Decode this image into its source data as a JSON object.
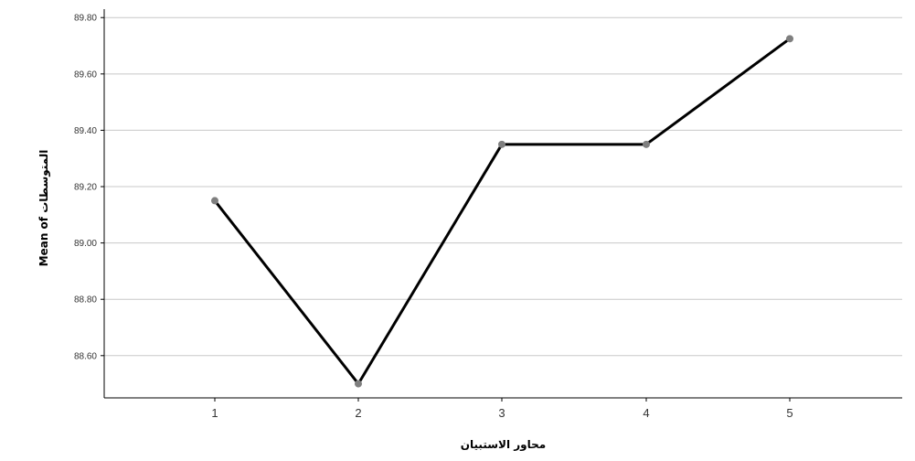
{
  "chart_data": {
    "type": "line",
    "title": "",
    "xlabel": "محاور الاستبيان",
    "ylabel": "Mean of المتوسطات",
    "categories": [
      "1",
      "2",
      "3",
      "4",
      "5"
    ],
    "series": [
      {
        "values": [
          89.15,
          88.5,
          89.35,
          89.35,
          89.725
        ]
      }
    ],
    "ylim": [
      88.45,
      89.83
    ],
    "yticks": [
      "89.80",
      "89.60",
      "89.40",
      "89.20",
      "89.00",
      "88.80",
      "88.60"
    ],
    "ytick_values": [
      89.8,
      89.6,
      89.4,
      89.2,
      89.0,
      88.8,
      88.6
    ],
    "grid": true,
    "line_color": "#000000",
    "marker_color": "#7f7f7f",
    "grid_color": "#c8c8c8",
    "legend": "none"
  }
}
